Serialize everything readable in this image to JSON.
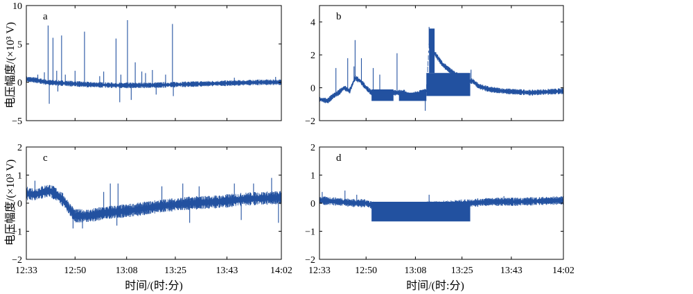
{
  "figure": {
    "ylabel": "电压幅度/(×10³ V)",
    "xlabel": "时间/(时:分)",
    "xticks": [
      "12:33",
      "12:50",
      "13:08",
      "13:25",
      "13:43",
      "14:02"
    ]
  },
  "colors": {
    "trace": "#2251a0",
    "axis": "#000000",
    "background": "#ffffff"
  },
  "chart_data": [
    {
      "id": "a",
      "type": "line",
      "panel_label": "a",
      "xlim": [
        "12:33",
        "14:02"
      ],
      "ylim": [
        -5,
        10
      ],
      "yticks": [
        -5,
        0,
        5,
        10
      ],
      "baseline": [
        [
          "12:33",
          0.4
        ],
        [
          "12:36",
          0.3
        ],
        [
          "12:40",
          0.0
        ],
        [
          "12:45",
          -0.1
        ],
        [
          "12:55",
          -0.3
        ],
        [
          "13:05",
          -0.4
        ],
        [
          "13:15",
          -0.4
        ],
        [
          "13:25",
          -0.3
        ],
        [
          "13:35",
          -0.2
        ],
        [
          "13:45",
          -0.1
        ],
        [
          "13:55",
          0.0
        ],
        [
          "14:02",
          0.0
        ]
      ],
      "noise": 0.25,
      "spikes": [
        [
          "12:37",
          1.0
        ],
        [
          "12:39",
          1.3
        ],
        [
          "12:40",
          7.4
        ],
        [
          "12:41",
          -2.8
        ],
        [
          "12:42",
          5.8
        ],
        [
          "12:43",
          1.5
        ],
        [
          "12:44",
          -1.2
        ],
        [
          "12:45",
          6.1
        ],
        [
          "12:46",
          1.0
        ],
        [
          "12:50",
          1.5
        ],
        [
          "12:53",
          6.6
        ],
        [
          "12:58",
          0.8
        ],
        [
          "13:00",
          1.4
        ],
        [
          "13:04",
          5.7
        ],
        [
          "13:05",
          -2.6
        ],
        [
          "13:06",
          1.0
        ],
        [
          "13:08",
          8.1
        ],
        [
          "13:09",
          -2.3
        ],
        [
          "13:11",
          2.6
        ],
        [
          "13:13",
          1.4
        ],
        [
          "13:14",
          1.2
        ],
        [
          "13:17",
          1.6
        ],
        [
          "13:18",
          -1.6
        ],
        [
          "13:21",
          1.0
        ],
        [
          "13:24",
          7.6
        ],
        [
          "13:24",
          -1.8
        ],
        [
          "13:45",
          0.6
        ],
        [
          "14:00",
          0.7
        ]
      ]
    },
    {
      "id": "b",
      "type": "line",
      "panel_label": "b",
      "xlim": [
        "12:33",
        "14:02"
      ],
      "ylim": [
        -2,
        5
      ],
      "yticks": [
        -2,
        0,
        2,
        4
      ],
      "baseline": [
        [
          "12:33",
          -0.7
        ],
        [
          "12:36",
          -0.8
        ],
        [
          "12:38",
          -0.5
        ],
        [
          "12:40",
          -0.3
        ],
        [
          "12:42",
          0.0
        ],
        [
          "12:44",
          -0.2
        ],
        [
          "12:46",
          0.6
        ],
        [
          "12:48",
          0.4
        ],
        [
          "12:50",
          0.0
        ],
        [
          "12:52",
          -0.3
        ],
        [
          "12:53",
          -0.4
        ],
        [
          "12:57",
          -0.5
        ],
        [
          "13:00",
          -0.3
        ],
        [
          "13:04",
          -0.3
        ],
        [
          "13:06",
          -0.5
        ],
        [
          "13:10",
          -0.3
        ],
        [
          "13:12",
          -0.2
        ],
        [
          "13:13",
          2.6
        ],
        [
          "13:15",
          2.1
        ],
        [
          "13:18",
          1.4
        ],
        [
          "13:21",
          1.0
        ],
        [
          "13:24",
          0.7
        ],
        [
          "13:27",
          0.4
        ],
        [
          "13:29",
          0.4
        ],
        [
          "13:31",
          0.1
        ],
        [
          "13:35",
          -0.1
        ],
        [
          "13:40",
          -0.2
        ],
        [
          "13:50",
          -0.3
        ],
        [
          "14:02",
          -0.2
        ]
      ],
      "noise": 0.12,
      "bands": [
        [
          "12:52",
          "13:00",
          -0.8,
          -0.1
        ],
        [
          "13:02",
          "13:12",
          -0.8,
          -0.3
        ],
        [
          "13:12",
          "13:28",
          -0.5,
          0.9
        ],
        [
          "13:13",
          "13:15",
          0.9,
          3.6
        ]
      ],
      "spikes": [
        [
          "12:39",
          1.2
        ],
        [
          "12:43",
          1.8
        ],
        [
          "12:45",
          1.3
        ],
        [
          "12:46",
          2.9
        ],
        [
          "12:48",
          1.8
        ],
        [
          "12:52",
          1.2
        ],
        [
          "12:55",
          0.8
        ],
        [
          "13:01",
          2.1
        ],
        [
          "13:11",
          -1.4
        ],
        [
          "13:13",
          3.7
        ],
        [
          "13:28",
          1.1
        ]
      ]
    },
    {
      "id": "c",
      "type": "line",
      "panel_label": "c",
      "xlim": [
        "12:33",
        "14:02"
      ],
      "ylim": [
        -2,
        2
      ],
      "yticks": [
        -2,
        -1,
        0,
        1,
        2
      ],
      "baseline": [
        [
          "12:33",
          0.35
        ],
        [
          "12:36",
          0.3
        ],
        [
          "12:39",
          0.4
        ],
        [
          "12:41",
          0.45
        ],
        [
          "12:43",
          0.35
        ],
        [
          "12:46",
          0.1
        ],
        [
          "12:48",
          -0.2
        ],
        [
          "12:50",
          -0.45
        ],
        [
          "12:55",
          -0.45
        ],
        [
          "13:00",
          -0.35
        ],
        [
          "13:10",
          -0.25
        ],
        [
          "13:20",
          -0.1
        ],
        [
          "13:30",
          0.0
        ],
        [
          "13:40",
          0.05
        ],
        [
          "13:50",
          0.15
        ],
        [
          "14:02",
          0.2
        ]
      ],
      "noise": 0.16,
      "spikes": [
        [
          "12:36",
          0.8
        ],
        [
          "12:49",
          -0.9
        ],
        [
          "12:52",
          -0.9
        ],
        [
          "13:00",
          0.4
        ],
        [
          "13:02",
          0.7
        ],
        [
          "13:04",
          -0.8
        ],
        [
          "13:05",
          0.7
        ],
        [
          "13:20",
          0.6
        ],
        [
          "13:27",
          0.7
        ],
        [
          "13:30",
          -0.7
        ],
        [
          "13:33",
          0.6
        ],
        [
          "13:45",
          0.7
        ],
        [
          "13:48",
          -0.6
        ],
        [
          "13:52",
          0.7
        ],
        [
          "13:58",
          0.9
        ],
        [
          "14:01",
          -0.7
        ]
      ]
    },
    {
      "id": "d",
      "type": "line",
      "panel_label": "d",
      "xlim": [
        "12:33",
        "14:02"
      ],
      "ylim": [
        -2,
        2
      ],
      "yticks": [
        -2,
        -1,
        0,
        1,
        2
      ],
      "baseline": [
        [
          "12:33",
          0.1
        ],
        [
          "12:40",
          0.05
        ],
        [
          "12:46",
          0.0
        ],
        [
          "12:50",
          0.0
        ],
        [
          "12:53",
          -0.1
        ],
        [
          "13:00",
          -0.1
        ],
        [
          "13:10",
          -0.1
        ],
        [
          "13:20",
          -0.05
        ],
        [
          "13:28",
          0.0
        ],
        [
          "13:35",
          0.05
        ],
        [
          "13:45",
          0.05
        ],
        [
          "14:02",
          0.1
        ]
      ],
      "noise": 0.1,
      "bands": [
        [
          "12:52",
          "13:28",
          -0.65,
          0.05
        ]
      ],
      "spikes": [
        [
          "12:34",
          0.4
        ],
        [
          "12:42",
          0.45
        ],
        [
          "12:46",
          0.3
        ],
        [
          "13:13",
          0.3
        ],
        [
          "13:40",
          0.25
        ]
      ]
    }
  ]
}
